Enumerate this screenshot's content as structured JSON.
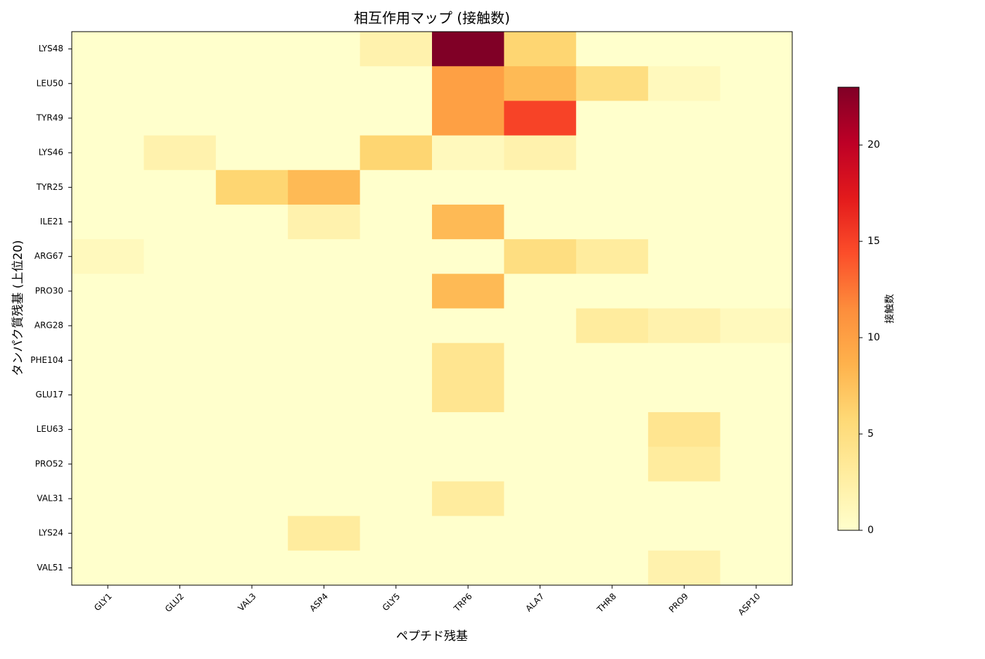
{
  "chart_data": {
    "type": "heatmap",
    "title": "相互作用マップ (接触数)",
    "x_label": "ペプチド残基",
    "y_label": "タンパク質残基 (上位20)",
    "colorbar_label": "接触数",
    "colormap": "YlOrRd",
    "x_categories": [
      "GLY1",
      "GLU2",
      "VAL3",
      "ASP4",
      "GLY5",
      "TRP6",
      "ALA7",
      "THR8",
      "PRO9",
      "ASP10"
    ],
    "y_categories": [
      "LYS48",
      "LEU50",
      "TYR49",
      "LYS46",
      "TYR25",
      "ILE21",
      "ARG67",
      "PRO30",
      "ARG28",
      "PHE104",
      "GLU17",
      "LEU63",
      "PRO52",
      "VAL31",
      "LYS24",
      "VAL51"
    ],
    "values": [
      [
        0,
        0,
        0,
        0,
        2,
        23,
        6,
        0,
        0,
        0
      ],
      [
        0,
        0,
        0,
        0,
        0,
        10,
        8,
        5,
        1,
        0
      ],
      [
        0,
        0,
        0,
        0,
        0,
        10,
        15,
        0,
        0,
        0
      ],
      [
        0,
        2,
        0,
        0,
        6,
        1,
        2,
        0,
        0,
        0
      ],
      [
        0,
        0,
        6,
        8,
        0,
        0,
        0,
        0,
        0,
        0
      ],
      [
        0,
        0,
        0,
        2,
        0,
        8,
        0,
        0,
        0,
        0
      ],
      [
        1,
        0,
        0,
        0,
        0,
        0,
        5,
        3,
        0,
        0
      ],
      [
        0,
        0,
        0,
        0,
        0,
        8,
        0,
        0,
        0,
        0
      ],
      [
        0,
        0,
        0,
        0,
        0,
        0,
        0,
        3,
        2,
        1
      ],
      [
        0,
        0,
        0,
        0,
        0,
        4,
        0,
        0,
        0,
        0
      ],
      [
        0,
        0,
        0,
        0,
        0,
        4,
        0,
        0,
        0,
        0
      ],
      [
        0,
        0,
        0,
        0,
        0,
        0,
        0,
        0,
        4,
        0
      ],
      [
        0,
        0,
        0,
        0,
        0,
        0,
        0,
        0,
        3,
        0
      ],
      [
        0,
        0,
        0,
        0,
        0,
        3,
        0,
        0,
        0,
        0
      ],
      [
        0,
        0,
        0,
        3,
        0,
        0,
        0,
        0,
        0,
        0
      ],
      [
        0,
        0,
        0,
        0,
        0,
        0,
        0,
        0,
        2,
        0
      ]
    ],
    "zlim": [
      0,
      23
    ],
    "zticks": [
      0,
      5,
      10,
      15,
      20
    ]
  }
}
